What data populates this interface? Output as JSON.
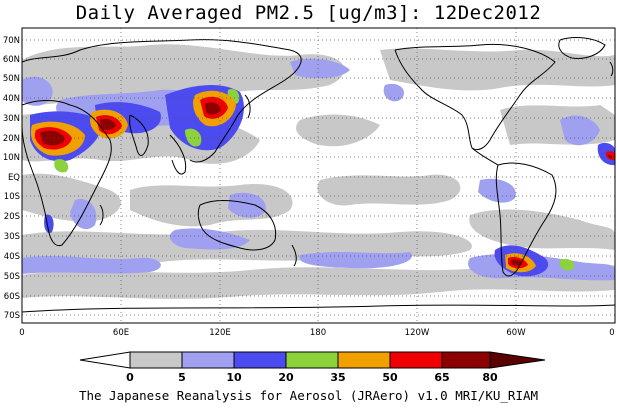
{
  "title": "Daily Averaged PM2.5 [ug/m3]: 12Dec2012",
  "footer": "The Japanese Reanalysis for Aerosol (JRAero) v1.0 MRI/KU_RIAM",
  "lat_labels": [
    "70N",
    "60N",
    "50N",
    "40N",
    "30N",
    "20N",
    "10N",
    "EQ",
    "10S",
    "20S",
    "30S",
    "40S",
    "50S",
    "60S",
    "70S"
  ],
  "lon_labels": [
    "0",
    "60E",
    "120E",
    "180",
    "120W",
    "60W",
    "0"
  ],
  "colorbar": {
    "levels": [
      "0",
      "5",
      "10",
      "20",
      "35",
      "50",
      "65",
      "80"
    ],
    "colors": [
      "#ffffff",
      "#c8c8c8",
      "#a0a0f0",
      "#4b4bf0",
      "#8cd23c",
      "#f0a000",
      "#f00000",
      "#8c0000"
    ]
  }
}
